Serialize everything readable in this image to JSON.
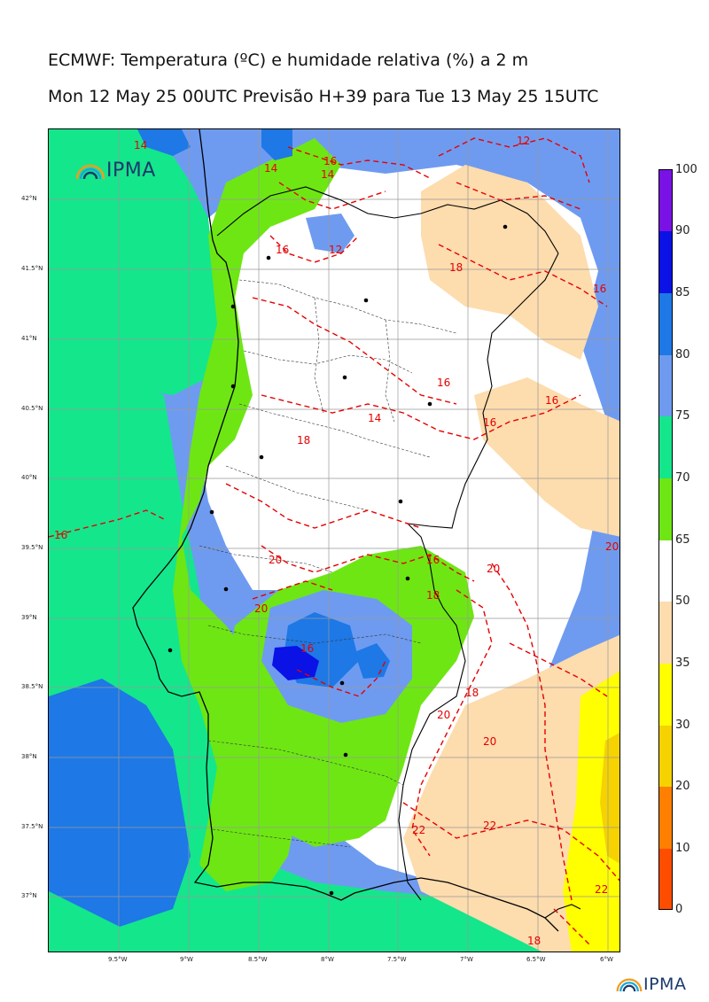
{
  "header": {
    "title": "ECMWF: Temperatura (ºC) e humidade relativa (%) a 2 m",
    "subtitle": "Mon 12 May 25 00UTC Previsão H+39 para Tue 13 May 25 15UTC"
  },
  "logo": {
    "text": "IPMA",
    "icon": "ipma-rainbow-icon"
  },
  "axes": {
    "lat_labels": [
      "42°N",
      "41.5°N",
      "41°N",
      "40.5°N",
      "40°N",
      "39.5°N",
      "39°N",
      "38.5°N",
      "38°N",
      "37.5°N",
      "37°N"
    ],
    "lon_labels": [
      "9.5°W",
      "9°W",
      "8.5°W",
      "8°W",
      "7.5°W",
      "7°W",
      "6.5°W",
      "6°W"
    ]
  },
  "colorbar": {
    "labels": [
      "100",
      "90",
      "85",
      "80",
      "75",
      "70",
      "65",
      "50",
      "35",
      "30",
      "20",
      "10",
      "0"
    ],
    "colors": [
      "#7a12e6",
      "#0a12e6",
      "#1e78e6",
      "#6e9bf0",
      "#14e68c",
      "#6ee614",
      "#ffffff",
      "#fddcae",
      "#ffff00",
      "#f5d200",
      "#ff8000",
      "#ff4d00"
    ]
  },
  "temperature_labels": {
    "color": "#e60000",
    "values": [
      "12",
      "12",
      "14",
      "14",
      "14",
      "16",
      "16",
      "16",
      "16",
      "16",
      "16",
      "16",
      "16",
      "18",
      "18",
      "18",
      "18",
      "18",
      "20",
      "20",
      "20",
      "20",
      "20",
      "20",
      "22",
      "22",
      "22",
      "14",
      "16"
    ]
  },
  "stations": {
    "count_label": ""
  }
}
